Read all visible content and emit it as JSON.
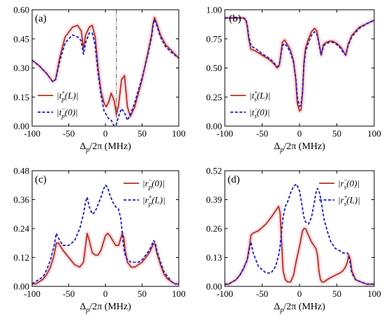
{
  "chart_data": [
    {
      "panel": "(a)",
      "type": "line",
      "xlabel": "Δp/2π (MHz)",
      "xlim": [
        -100,
        100
      ],
      "xticks": [
        -100,
        -50,
        0,
        50,
        100
      ],
      "ylim": [
        0,
        0.6
      ],
      "yticks": [
        "0.00",
        "0.15",
        "0.30",
        "0.45",
        "0.60"
      ],
      "vline_x": 15,
      "legend_position": "bottom-left",
      "series": [
        {
          "name": "|t_p^+(L)|",
          "legend_main": "|t",
          "legend_sub": "p",
          "legend_sup": "+",
          "legend_tail": "(L)|",
          "color": "#b2301e",
          "style": "solid",
          "x": [
            -100,
            -90,
            -80,
            -72,
            -68,
            -62,
            -55,
            -45,
            -38,
            -33,
            -30,
            -27,
            -22,
            -18,
            -14,
            -10,
            -6,
            -2,
            1,
            4,
            8,
            12,
            15,
            18,
            22,
            26,
            30,
            34,
            40,
            50,
            58,
            63,
            65,
            67,
            70,
            75,
            82,
            90,
            100
          ],
          "y": [
            0.34,
            0.31,
            0.27,
            0.23,
            0.24,
            0.36,
            0.46,
            0.51,
            0.52,
            0.49,
            0.4,
            0.47,
            0.51,
            0.52,
            0.46,
            0.3,
            0.18,
            0.12,
            0.1,
            0.12,
            0.17,
            0.13,
            0.06,
            0.11,
            0.24,
            0.26,
            0.1,
            0.05,
            0.1,
            0.24,
            0.38,
            0.47,
            0.53,
            0.56,
            0.53,
            0.47,
            0.42,
            0.39,
            0.35
          ]
        },
        {
          "name": "|t_p^-(0)|",
          "legend_main": "|t",
          "legend_sub": "p",
          "legend_sup": "−",
          "legend_tail": "(0)|",
          "color": "#1a1ad6",
          "style": "dashed",
          "x": [
            -100,
            -90,
            -80,
            -72,
            -68,
            -62,
            -55,
            -45,
            -38,
            -33,
            -30,
            -27,
            -22,
            -18,
            -14,
            -10,
            -6,
            -2,
            1,
            4,
            8,
            12,
            15,
            18,
            22,
            26,
            30,
            34,
            40,
            50,
            58,
            63,
            65,
            67,
            70,
            75,
            82,
            90,
            100
          ],
          "y": [
            0.34,
            0.31,
            0.27,
            0.23,
            0.24,
            0.34,
            0.43,
            0.47,
            0.46,
            0.44,
            0.37,
            0.43,
            0.48,
            0.48,
            0.42,
            0.27,
            0.16,
            0.08,
            0.06,
            0.04,
            0.03,
            0.0,
            0.01,
            0.05,
            0.09,
            0.07,
            0.03,
            0.06,
            0.12,
            0.25,
            0.37,
            0.46,
            0.52,
            0.55,
            0.52,
            0.46,
            0.41,
            0.38,
            0.35
          ]
        }
      ]
    },
    {
      "panel": "(b)",
      "type": "line",
      "xlabel": "Δp/2π (MHz)",
      "xlim": [
        -100,
        100
      ],
      "xticks": [
        -100,
        -50,
        0,
        50,
        100
      ],
      "ylim": [
        0,
        1.0
      ],
      "yticks": [
        "0.00",
        "0.25",
        "0.50",
        "0.75",
        "1.00"
      ],
      "legend_position": "bottom-left",
      "series": [
        {
          "name": "|t_s^+(L)|",
          "legend_main": "|t",
          "legend_sub": "s",
          "legend_sup": "+",
          "legend_tail": "(L)|",
          "color": "#b2301e",
          "style": "solid",
          "x": [
            -100,
            -90,
            -80,
            -75,
            -72,
            -70,
            -68,
            -65,
            -60,
            -55,
            -50,
            -45,
            -40,
            -35,
            -30,
            -27,
            -25,
            -23,
            -20,
            -16,
            -12,
            -8,
            -5,
            -3,
            0,
            2,
            4,
            6,
            8,
            12,
            16,
            20,
            23,
            26,
            29,
            32,
            36,
            40,
            45,
            50,
            55,
            60,
            62,
            65,
            70,
            80,
            90,
            100
          ],
          "y": [
            0.93,
            0.93,
            0.93,
            0.93,
            0.91,
            0.86,
            0.75,
            0.66,
            0.65,
            0.63,
            0.61,
            0.59,
            0.57,
            0.54,
            0.5,
            0.52,
            0.62,
            0.72,
            0.74,
            0.7,
            0.65,
            0.56,
            0.4,
            0.2,
            0.13,
            0.14,
            0.28,
            0.55,
            0.67,
            0.75,
            0.81,
            0.84,
            0.82,
            0.72,
            0.61,
            0.7,
            0.72,
            0.73,
            0.73,
            0.71,
            0.68,
            0.63,
            0.61,
            0.7,
            0.78,
            0.85,
            0.88,
            0.91
          ]
        },
        {
          "name": "|t_s^-(0)|",
          "legend_main": "|t",
          "legend_sub": "s",
          "legend_sup": "−",
          "legend_tail": "(0)|",
          "color": "#1a1ad6",
          "style": "dashed",
          "x": [
            -100,
            -90,
            -80,
            -75,
            -72,
            -70,
            -68,
            -65,
            -60,
            -55,
            -50,
            -45,
            -40,
            -35,
            -30,
            -27,
            -25,
            -23,
            -20,
            -16,
            -12,
            -8,
            -5,
            -3,
            0,
            2,
            4,
            6,
            8,
            12,
            16,
            20,
            23,
            26,
            29,
            32,
            36,
            40,
            45,
            50,
            55,
            60,
            62,
            65,
            70,
            80,
            90,
            100
          ],
          "y": [
            0.93,
            0.93,
            0.93,
            0.93,
            0.92,
            0.87,
            0.77,
            0.69,
            0.67,
            0.65,
            0.62,
            0.6,
            0.58,
            0.55,
            0.51,
            0.53,
            0.61,
            0.69,
            0.71,
            0.68,
            0.63,
            0.55,
            0.42,
            0.25,
            0.17,
            0.18,
            0.3,
            0.53,
            0.64,
            0.72,
            0.78,
            0.81,
            0.8,
            0.71,
            0.61,
            0.69,
            0.71,
            0.72,
            0.72,
            0.7,
            0.67,
            0.62,
            0.61,
            0.69,
            0.77,
            0.84,
            0.88,
            0.91
          ]
        }
      ]
    },
    {
      "panel": "(c)",
      "type": "line",
      "xlabel": "Δp/2π (MHz)",
      "xlim": [
        -100,
        100
      ],
      "xticks": [
        -100,
        -50,
        0,
        50,
        100
      ],
      "ylim": [
        0,
        0.48
      ],
      "yticks": [
        "0.00",
        "0.12",
        "0.24",
        "0.36",
        "0.48"
      ],
      "legend_position": "top-right",
      "series": [
        {
          "name": "|r_p^-(0)|",
          "legend_main": "|r",
          "legend_sub": "p",
          "legend_sup": "−",
          "legend_tail": "(0)|",
          "color": "#b2301e",
          "style": "solid",
          "x": [
            -100,
            -95,
            -90,
            -85,
            -80,
            -75,
            -70,
            -67,
            -64,
            -58,
            -50,
            -42,
            -35,
            -30,
            -27,
            -25,
            -22,
            -18,
            -14,
            -10,
            -6,
            -3,
            0,
            3,
            6,
            10,
            14,
            18,
            21,
            23,
            25,
            27,
            30,
            35,
            40,
            45,
            50,
            55,
            60,
            63,
            66,
            68,
            70,
            75,
            80,
            85,
            90,
            95,
            100
          ],
          "y": [
            0.01,
            0.01,
            0.02,
            0.03,
            0.05,
            0.08,
            0.13,
            0.18,
            0.18,
            0.15,
            0.12,
            0.09,
            0.08,
            0.1,
            0.17,
            0.22,
            0.19,
            0.14,
            0.13,
            0.13,
            0.15,
            0.18,
            0.21,
            0.22,
            0.21,
            0.19,
            0.17,
            0.17,
            0.2,
            0.22,
            0.2,
            0.15,
            0.1,
            0.08,
            0.08,
            0.09,
            0.1,
            0.12,
            0.14,
            0.16,
            0.18,
            0.17,
            0.14,
            0.09,
            0.05,
            0.03,
            0.02,
            0.01,
            0.01
          ]
        },
        {
          "name": "|r_p^+(L)|",
          "legend_main": "|r",
          "legend_sub": "p",
          "legend_sup": "+",
          "legend_tail": "(L)|",
          "color": "#1a1ad6",
          "style": "dashed",
          "x": [
            -100,
            -95,
            -90,
            -85,
            -80,
            -75,
            -70,
            -67,
            -64,
            -58,
            -50,
            -42,
            -35,
            -30,
            -27,
            -25,
            -22,
            -18,
            -14,
            -10,
            -6,
            -3,
            0,
            3,
            6,
            10,
            14,
            18,
            21,
            23,
            25,
            27,
            30,
            35,
            40,
            45,
            50,
            55,
            60,
            63,
            66,
            68,
            70,
            75,
            80,
            85,
            90,
            95,
            100
          ],
          "y": [
            0.01,
            0.02,
            0.03,
            0.04,
            0.07,
            0.11,
            0.17,
            0.22,
            0.2,
            0.17,
            0.17,
            0.19,
            0.24,
            0.3,
            0.35,
            0.37,
            0.33,
            0.3,
            0.31,
            0.34,
            0.37,
            0.4,
            0.42,
            0.41,
            0.38,
            0.35,
            0.33,
            0.32,
            0.28,
            0.22,
            0.16,
            0.13,
            0.11,
            0.1,
            0.1,
            0.1,
            0.11,
            0.13,
            0.15,
            0.17,
            0.19,
            0.18,
            0.15,
            0.1,
            0.06,
            0.04,
            0.02,
            0.01,
            0.01
          ]
        }
      ]
    },
    {
      "panel": "(d)",
      "type": "line",
      "xlabel": "Δp/2π (MHz)",
      "xlim": [
        -100,
        100
      ],
      "xticks": [
        -100,
        -50,
        0,
        50,
        100
      ],
      "ylim": [
        0,
        0.52
      ],
      "yticks": [
        "0.00",
        "0.13",
        "0.26",
        "0.39",
        "0.52"
      ],
      "legend_position": "top-right",
      "series": [
        {
          "name": "|r_s^-(0)|",
          "legend_main": "|r",
          "legend_sub": "s",
          "legend_sup": "−",
          "legend_tail": "(0)|",
          "color": "#b2301e",
          "style": "solid",
          "x": [
            -100,
            -95,
            -90,
            -85,
            -80,
            -75,
            -70,
            -67,
            -65,
            -62,
            -55,
            -45,
            -38,
            -32,
            -28,
            -26,
            -24,
            -22,
            -19,
            -16,
            -12,
            -8,
            -4,
            0,
            4,
            6,
            8,
            12,
            16,
            20,
            22,
            24,
            26,
            28,
            30,
            33,
            37,
            42,
            48,
            54,
            58,
            62,
            64,
            66,
            68,
            70,
            75,
            82,
            90,
            100
          ],
          "y": [
            0.01,
            0.01,
            0.02,
            0.03,
            0.05,
            0.08,
            0.12,
            0.18,
            0.23,
            0.24,
            0.25,
            0.28,
            0.31,
            0.34,
            0.36,
            0.33,
            0.2,
            0.07,
            0.03,
            0.02,
            0.02,
            0.05,
            0.12,
            0.18,
            0.25,
            0.26,
            0.26,
            0.23,
            0.2,
            0.18,
            0.17,
            0.14,
            0.07,
            0.03,
            0.02,
            0.02,
            0.03,
            0.04,
            0.05,
            0.06,
            0.07,
            0.09,
            0.11,
            0.14,
            0.12,
            0.07,
            0.03,
            0.02,
            0.01,
            0.01
          ]
        },
        {
          "name": "|r_s^+(L)|",
          "legend_main": "|r",
          "legend_sub": "s",
          "legend_sup": "+",
          "legend_tail": "(L)|",
          "color": "#1a1ad6",
          "style": "dashed",
          "x": [
            -100,
            -95,
            -90,
            -85,
            -80,
            -75,
            -70,
            -67,
            -65,
            -62,
            -55,
            -45,
            -38,
            -32,
            -28,
            -26,
            -24,
            -22,
            -19,
            -16,
            -12,
            -8,
            -4,
            0,
            4,
            6,
            8,
            12,
            16,
            20,
            22,
            24,
            26,
            28,
            30,
            33,
            37,
            42,
            48,
            54,
            58,
            62,
            64,
            66,
            68,
            70,
            75,
            82,
            90,
            100
          ],
          "y": [
            0.01,
            0.01,
            0.02,
            0.03,
            0.05,
            0.08,
            0.12,
            0.17,
            0.2,
            0.15,
            0.09,
            0.06,
            0.06,
            0.09,
            0.14,
            0.18,
            0.25,
            0.31,
            0.36,
            0.38,
            0.42,
            0.45,
            0.46,
            0.43,
            0.35,
            0.31,
            0.29,
            0.28,
            0.31,
            0.38,
            0.42,
            0.44,
            0.43,
            0.4,
            0.36,
            0.3,
            0.25,
            0.2,
            0.17,
            0.16,
            0.15,
            0.15,
            0.15,
            0.14,
            0.1,
            0.06,
            0.03,
            0.02,
            0.01,
            0.01
          ]
        }
      ]
    }
  ]
}
